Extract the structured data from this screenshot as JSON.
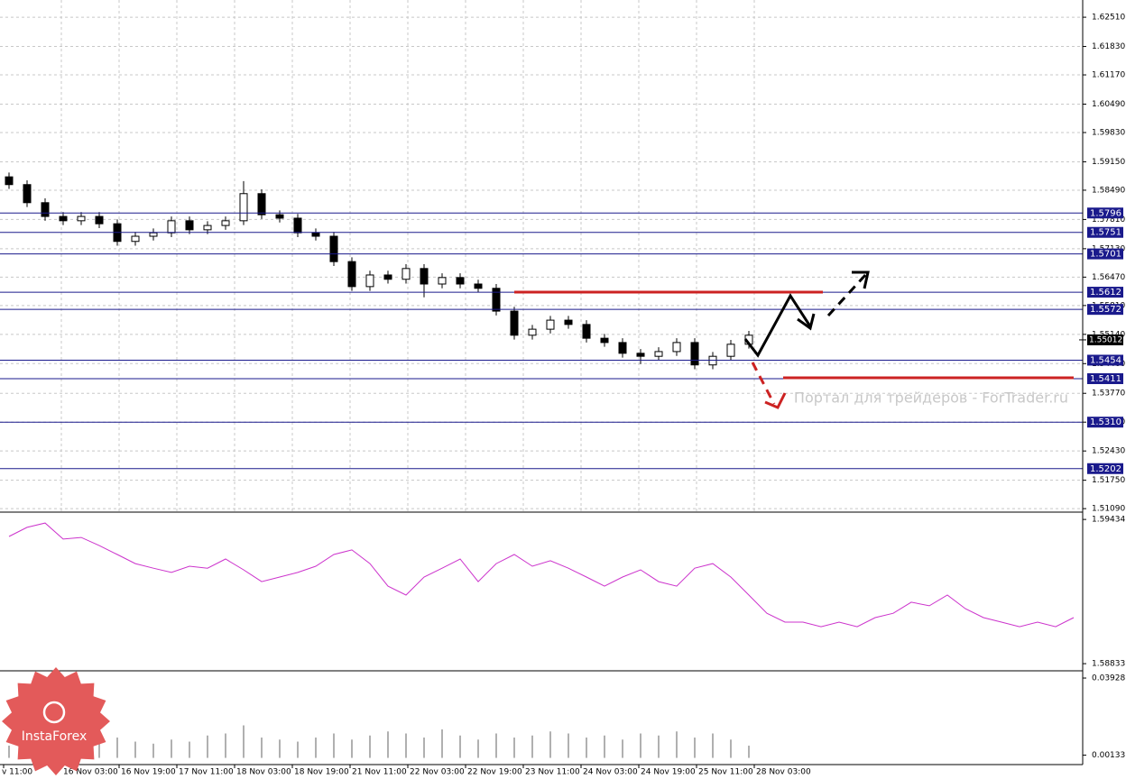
{
  "chart_data": [
    {
      "type": "candlestick",
      "ylim": [
        1.5103,
        1.6291
      ],
      "grid": true,
      "color": "#000000",
      "level_color": "#1a1a8c",
      "yticks": [
        {
          "value": 1.6251,
          "label": "1.62510"
        },
        {
          "value": 1.6183,
          "label": "1.61830"
        },
        {
          "value": 1.6117,
          "label": "1.61170"
        },
        {
          "value": 1.6049,
          "label": "1.60490"
        },
        {
          "value": 1.5983,
          "label": "1.59830"
        },
        {
          "value": 1.5915,
          "label": "1.59150"
        },
        {
          "value": 1.5849,
          "label": "1.58490"
        },
        {
          "value": 1.5781,
          "label": "1.57810"
        },
        {
          "value": 1.5713,
          "label": "1.57130"
        },
        {
          "value": 1.5647,
          "label": "1.56470"
        },
        {
          "value": 1.5581,
          "label": "1.55810"
        },
        {
          "value": 1.5514,
          "label": "1.55140"
        },
        {
          "value": 1.5446,
          "label": "1.54460"
        },
        {
          "value": 1.5377,
          "label": "1.53770"
        },
        {
          "value": 1.531,
          "label": "1.53100"
        },
        {
          "value": 1.5243,
          "label": "1.52430"
        },
        {
          "value": 1.5175,
          "label": "1.51750"
        },
        {
          "value": 1.5109,
          "label": "1.51090"
        }
      ],
      "levels": [
        1.5796,
        1.5751,
        1.5701,
        1.5612,
        1.5572,
        1.5454,
        1.5411,
        1.531,
        1.5202
      ],
      "level_labels": [
        "1.5796",
        "1.5751",
        "1.5701",
        "1.5612",
        "1.5572",
        "1.5454",
        "1.5411",
        "1.5310",
        "1.5202"
      ],
      "current_price": 1.55012,
      "open": [
        1.588,
        1.5862,
        1.582,
        1.5788,
        1.5778,
        1.5788,
        1.5771,
        1.573,
        1.5742,
        1.575,
        1.5778,
        1.5757,
        1.5767,
        1.5778,
        1.5841,
        1.5792,
        1.5784,
        1.575,
        1.5742,
        1.5683,
        1.5625,
        1.5652,
        1.5642,
        1.5667,
        1.5631,
        1.5646,
        1.5631,
        1.5621,
        1.5568,
        1.5512,
        1.5526,
        1.5547,
        1.5537,
        1.5505,
        1.5495,
        1.547,
        1.5463,
        1.5474,
        1.5495,
        1.5443,
        1.5463,
        1.5491
      ],
      "high": [
        1.589,
        1.5872,
        1.583,
        1.5798,
        1.5798,
        1.5798,
        1.5781,
        1.5752,
        1.576,
        1.5788,
        1.5788,
        1.5777,
        1.5788,
        1.587,
        1.5851,
        1.5802,
        1.5794,
        1.576,
        1.5752,
        1.5693,
        1.5662,
        1.5662,
        1.5677,
        1.5677,
        1.5656,
        1.5656,
        1.5641,
        1.5631,
        1.5578,
        1.5536,
        1.5557,
        1.5557,
        1.5547,
        1.5515,
        1.5505,
        1.548,
        1.5484,
        1.5505,
        1.5505,
        1.5473,
        1.5501,
        1.5522
      ],
      "low": [
        1.5852,
        1.581,
        1.5778,
        1.5768,
        1.5768,
        1.5761,
        1.572,
        1.572,
        1.5732,
        1.574,
        1.5747,
        1.5747,
        1.5757,
        1.5768,
        1.5782,
        1.5774,
        1.574,
        1.5732,
        1.5673,
        1.5615,
        1.5615,
        1.5632,
        1.5632,
        1.56,
        1.5621,
        1.5621,
        1.5611,
        1.5558,
        1.5502,
        1.5502,
        1.5516,
        1.5527,
        1.5495,
        1.5485,
        1.546,
        1.5445,
        1.5453,
        1.5464,
        1.5433,
        1.5433,
        1.5453,
        1.5481
      ],
      "close": [
        1.5862,
        1.582,
        1.5788,
        1.5778,
        1.5788,
        1.5771,
        1.573,
        1.5742,
        1.575,
        1.5778,
        1.5757,
        1.5767,
        1.5778,
        1.5841,
        1.5792,
        1.5784,
        1.575,
        1.5742,
        1.5683,
        1.5625,
        1.5652,
        1.5642,
        1.5667,
        1.5631,
        1.5646,
        1.5631,
        1.5621,
        1.5568,
        1.5512,
        1.5526,
        1.5547,
        1.5537,
        1.5505,
        1.5495,
        1.547,
        1.5463,
        1.5474,
        1.5495,
        1.5443,
        1.5463,
        1.5491,
        1.5512
      ]
    },
    {
      "type": "line",
      "ylim": [
        1.58807,
        1.59457
      ],
      "yticks": [
        {
          "value": 1.59434,
          "label": "1.59434"
        },
        {
          "value": 1.58833,
          "label": "1.58833"
        }
      ],
      "series": [
        {
          "color": "#cc33cc",
          "values": [
            1.59363,
            1.59401,
            1.59419,
            1.59352,
            1.59359,
            1.59325,
            1.59288,
            1.5925,
            1.59231,
            1.59213,
            1.59239,
            1.59231,
            1.59269,
            1.59224,
            1.59175,
            1.59194,
            1.59213,
            1.59239,
            1.59288,
            1.59307,
            1.5925,
            1.59156,
            1.59119,
            1.59194,
            1.59231,
            1.59269,
            1.59175,
            1.5925,
            1.59288,
            1.59239,
            1.59262,
            1.59231,
            1.59194,
            1.59156,
            1.59194,
            1.59224,
            1.59175,
            1.59156,
            1.59231,
            1.5925,
            1.59194,
            1.59119,
            1.59043,
            1.59006,
            1.59006,
            1.58987,
            1.59006,
            1.58987,
            1.59025,
            1.59043,
            1.59089,
            1.59074,
            1.59119,
            1.59062,
            1.59025,
            1.59006,
            1.58987,
            1.59006,
            1.58987,
            1.59025
          ]
        }
      ]
    },
    {
      "type": "bar",
      "ylim": [
        -0.0033,
        0.0424
      ],
      "color": "#b0b0b0",
      "yticks": [
        0.03928,
        0.00133
      ],
      "values": [
        0.006,
        0.008,
        0.005,
        0.007,
        0.006,
        0.009,
        0.01,
        0.008,
        0.007,
        0.009,
        0.008,
        0.011,
        0.012,
        0.016,
        0.01,
        0.009,
        0.008,
        0.01,
        0.012,
        0.009,
        0.011,
        0.013,
        0.012,
        0.01,
        0.014,
        0.011,
        0.009,
        0.012,
        0.01,
        0.011,
        0.013,
        0.012,
        0.01,
        0.011,
        0.009,
        0.012,
        0.011,
        0.013,
        0.01,
        0.012,
        0.009,
        0.006
      ]
    }
  ],
  "x_labels": [
    "v 11:00",
    "16 Nov 03:00",
    "16 Nov 19:00",
    "17 Nov 11:00",
    "18 Nov 03:00",
    "18 Nov 19:00",
    "21 Nov 11:00",
    "22 Nov 03:00",
    "22 Nov 19:00",
    "23 Nov 11:00",
    "24 Nov 03:00",
    "24 Nov 19:00",
    "25 Nov 11:00",
    "28 Nov 03:00"
  ],
  "watermark": "Портал для трейдеров - ForTrader.ru",
  "logo": "InstaForex"
}
